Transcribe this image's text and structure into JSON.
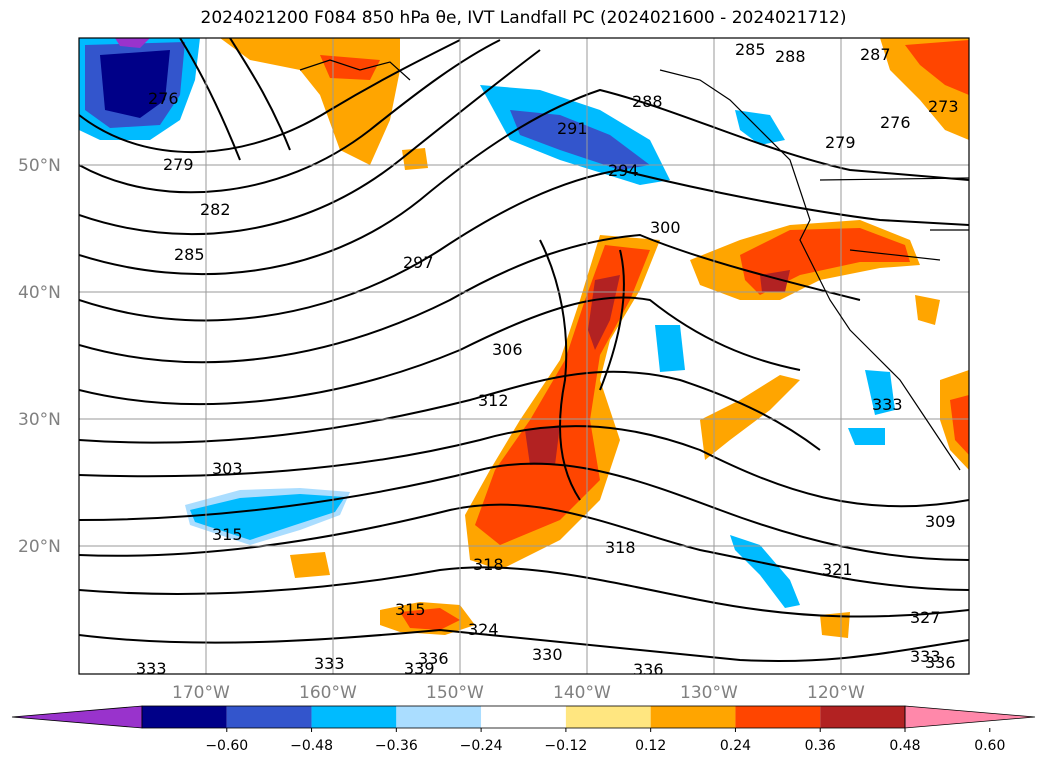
{
  "title": "2024021200 F084 850 hPa θe, IVT Landfall PC (2024021600 - 2024021712)",
  "longitude_labels": [
    "170°W",
    "160°W",
    "150°W",
    "140°W",
    "130°W",
    "120°W"
  ],
  "latitude_labels": [
    "50°N",
    "40°N",
    "30°N",
    "20°N"
  ],
  "contour_labels": [
    "276",
    "279",
    "282",
    "285",
    "297",
    "291",
    "294",
    "300",
    "288",
    "285",
    "288",
    "287",
    "273",
    "276",
    "279",
    "306",
    "312",
    "303",
    "315",
    "318",
    "318",
    "315",
    "324",
    "330",
    "336",
    "333",
    "333",
    "339",
    "336",
    "321",
    "309",
    "327",
    "333",
    "336",
    "333"
  ],
  "colorbar": {
    "ticks": [
      "−0.60",
      "−0.48",
      "−0.36",
      "−0.24",
      "−0.12",
      "0.12",
      "0.24",
      "0.36",
      "0.48",
      "0.60"
    ],
    "colors": [
      "#9933cc",
      "#000088",
      "#3355cc",
      "#00bbff",
      "#aaddff",
      "#ffffff",
      "#ffe680",
      "#ffa500",
      "#ff4500",
      "#b22222",
      "#ff88aa"
    ]
  }
}
